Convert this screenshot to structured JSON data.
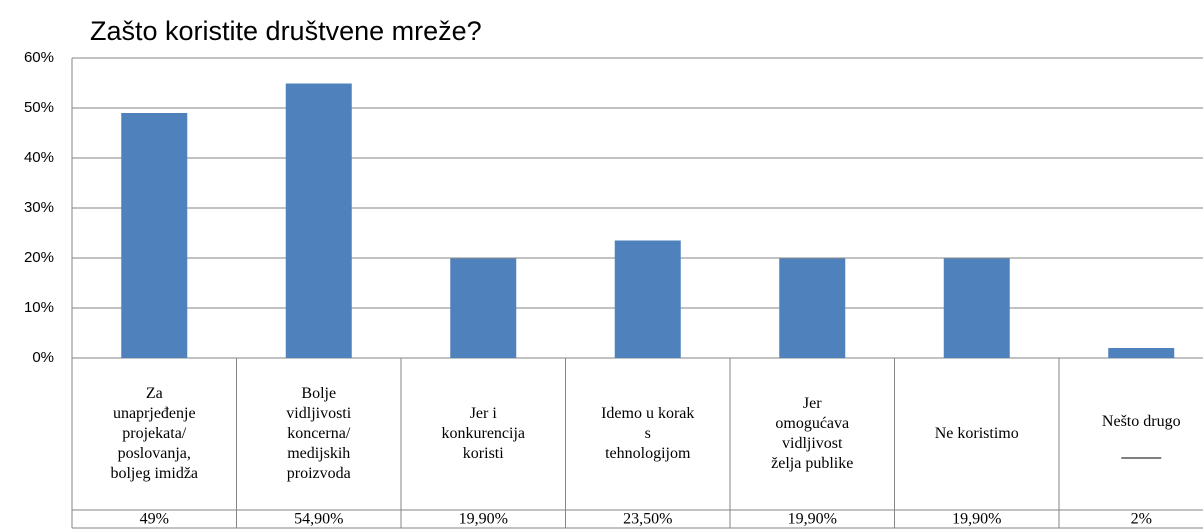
{
  "chart_data": {
    "type": "bar",
    "title": "Zašto koristite društvene mreže?",
    "categories": [
      "Za\nunaprjeđenje\nprojekata/\nposlovanja,\nboljeg imidža",
      "Bolje\nvidljivosti\nkoncerna/\nmedijskih\nproizvoda",
      "Jer i\nkonkurencija\nkoristi",
      "Idemo u korak\ns\ntehnologijom",
      "Jer\nomogućava\nvidljivost\nželja publike",
      "Ne koristimo",
      "Nešto drugo"
    ],
    "values": [
      49,
      54.9,
      19.9,
      23.5,
      19.9,
      19.9,
      2
    ],
    "value_labels": [
      "49%",
      "54,90%",
      "19,90%",
      "23,50%",
      "19,90%",
      "19,90%",
      "2%"
    ],
    "color": "#4f81bd",
    "ylim": [
      0,
      60
    ],
    "yticks": [
      {
        "value": 0,
        "label": "0%"
      },
      {
        "value": 10,
        "label": "10%"
      },
      {
        "value": 20,
        "label": "20%"
      },
      {
        "value": 30,
        "label": "30%"
      },
      {
        "value": 40,
        "label": "40%"
      },
      {
        "value": 50,
        "label": "50%"
      },
      {
        "value": 60,
        "label": "60%"
      }
    ],
    "grid": true
  }
}
